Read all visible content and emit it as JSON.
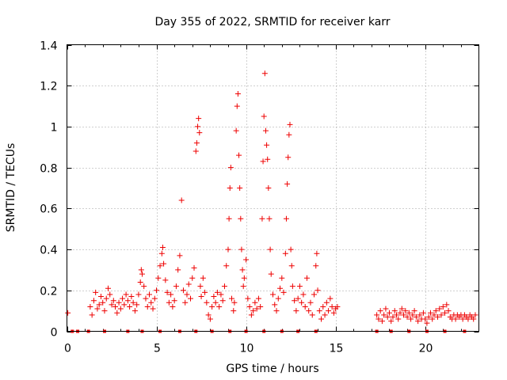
{
  "chart_data": {
    "type": "scatter",
    "title": "Day 355 of 2022, SRMTID for receiver karr",
    "xlabel": "GPS time / hours",
    "ylabel": "SRMTID / TECUs",
    "xlim": [
      0,
      23
    ],
    "ylim": [
      0,
      1.4
    ],
    "xticks": [
      "0",
      "5",
      "10",
      "15",
      "20"
    ],
    "xtick_values": [
      0,
      5,
      10,
      15,
      20
    ],
    "yticks": [
      "0",
      "0.2",
      "0.4",
      "0.6",
      "0.8",
      "1",
      "1.2",
      "1.4"
    ],
    "ytick_values": [
      0,
      0.2,
      0.4,
      0.6,
      0.8,
      1.0,
      1.2,
      1.4
    ],
    "grid": true,
    "color": "#ee0000",
    "marker": "+",
    "baseline_markers_x": [
      0.3,
      0.6,
      1.2,
      2.1,
      3.4,
      4.2,
      5.2,
      6.3,
      7.2,
      8.1,
      9.1,
      10.0,
      11.0,
      12.0,
      12.9,
      13.9,
      17.3,
      18.1,
      19.1,
      20.1,
      21.1,
      22.2
    ],
    "series": [
      {
        "name": "SRMTID",
        "points": [
          [
            0.05,
            0.09
          ],
          [
            1.3,
            0.12
          ],
          [
            1.4,
            0.08
          ],
          [
            1.5,
            0.15
          ],
          [
            1.6,
            0.19
          ],
          [
            1.7,
            0.11
          ],
          [
            1.8,
            0.13
          ],
          [
            1.9,
            0.17
          ],
          [
            2.0,
            0.14
          ],
          [
            2.1,
            0.1
          ],
          [
            2.2,
            0.16
          ],
          [
            2.3,
            0.21
          ],
          [
            2.4,
            0.18
          ],
          [
            2.5,
            0.13
          ],
          [
            2.6,
            0.15
          ],
          [
            2.7,
            0.12
          ],
          [
            2.8,
            0.09
          ],
          [
            2.9,
            0.14
          ],
          [
            3.0,
            0.11
          ],
          [
            3.1,
            0.16
          ],
          [
            3.2,
            0.13
          ],
          [
            3.3,
            0.18
          ],
          [
            3.4,
            0.15
          ],
          [
            3.5,
            0.12
          ],
          [
            3.6,
            0.17
          ],
          [
            3.7,
            0.14
          ],
          [
            3.8,
            0.1
          ],
          [
            3.9,
            0.13
          ],
          [
            4.0,
            0.18
          ],
          [
            4.1,
            0.24
          ],
          [
            4.15,
            0.3
          ],
          [
            4.2,
            0.28
          ],
          [
            4.3,
            0.22
          ],
          [
            4.4,
            0.16
          ],
          [
            4.5,
            0.12
          ],
          [
            4.6,
            0.18
          ],
          [
            4.7,
            0.14
          ],
          [
            4.8,
            0.11
          ],
          [
            4.9,
            0.16
          ],
          [
            5.0,
            0.2
          ],
          [
            5.1,
            0.26
          ],
          [
            5.2,
            0.32
          ],
          [
            5.3,
            0.38
          ],
          [
            5.35,
            0.41
          ],
          [
            5.4,
            0.33
          ],
          [
            5.5,
            0.25
          ],
          [
            5.6,
            0.19
          ],
          [
            5.7,
            0.14
          ],
          [
            5.8,
            0.18
          ],
          [
            5.9,
            0.12
          ],
          [
            6.0,
            0.15
          ],
          [
            6.1,
            0.22
          ],
          [
            6.2,
            0.3
          ],
          [
            6.3,
            0.37
          ],
          [
            6.4,
            0.64
          ],
          [
            6.5,
            0.2
          ],
          [
            6.6,
            0.14
          ],
          [
            6.7,
            0.18
          ],
          [
            6.8,
            0.23
          ],
          [
            6.9,
            0.16
          ],
          [
            7.0,
            0.26
          ],
          [
            7.1,
            0.31
          ],
          [
            7.2,
            0.88
          ],
          [
            7.25,
            0.92
          ],
          [
            7.3,
            1.0
          ],
          [
            7.35,
            1.04
          ],
          [
            7.4,
            0.97
          ],
          [
            7.45,
            0.22
          ],
          [
            7.5,
            0.17
          ],
          [
            7.6,
            0.26
          ],
          [
            7.7,
            0.19
          ],
          [
            7.8,
            0.14
          ],
          [
            7.9,
            0.08
          ],
          [
            8.0,
            0.06
          ],
          [
            8.1,
            0.12
          ],
          [
            8.2,
            0.17
          ],
          [
            8.3,
            0.14
          ],
          [
            8.4,
            0.19
          ],
          [
            8.5,
            0.12
          ],
          [
            8.6,
            0.18
          ],
          [
            8.7,
            0.15
          ],
          [
            8.8,
            0.22
          ],
          [
            8.9,
            0.32
          ],
          [
            9.0,
            0.4
          ],
          [
            9.05,
            0.55
          ],
          [
            9.1,
            0.7
          ],
          [
            9.15,
            0.8
          ],
          [
            9.2,
            0.16
          ],
          [
            9.3,
            0.1
          ],
          [
            9.35,
            0.14
          ],
          [
            9.45,
            0.98
          ],
          [
            9.5,
            1.1
          ],
          [
            9.55,
            1.16
          ],
          [
            9.6,
            0.86
          ],
          [
            9.65,
            0.7
          ],
          [
            9.7,
            0.55
          ],
          [
            9.75,
            0.4
          ],
          [
            9.8,
            0.3
          ],
          [
            9.85,
            0.22
          ],
          [
            9.9,
            0.26
          ],
          [
            10.0,
            0.35
          ],
          [
            10.1,
            0.16
          ],
          [
            10.2,
            0.12
          ],
          [
            10.3,
            0.08
          ],
          [
            10.4,
            0.1
          ],
          [
            10.5,
            0.14
          ],
          [
            10.6,
            0.11
          ],
          [
            10.7,
            0.16
          ],
          [
            10.8,
            0.12
          ],
          [
            10.9,
            0.55
          ],
          [
            10.95,
            0.83
          ],
          [
            11.0,
            1.05
          ],
          [
            11.05,
            1.26
          ],
          [
            11.1,
            0.98
          ],
          [
            11.15,
            0.91
          ],
          [
            11.2,
            0.84
          ],
          [
            11.25,
            0.7
          ],
          [
            11.3,
            0.55
          ],
          [
            11.35,
            0.4
          ],
          [
            11.4,
            0.28
          ],
          [
            11.5,
            0.18
          ],
          [
            11.6,
            0.13
          ],
          [
            11.7,
            0.1
          ],
          [
            11.8,
            0.16
          ],
          [
            11.9,
            0.21
          ],
          [
            12.0,
            0.26
          ],
          [
            12.1,
            0.19
          ],
          [
            12.2,
            0.38
          ],
          [
            12.25,
            0.55
          ],
          [
            12.3,
            0.72
          ],
          [
            12.35,
            0.85
          ],
          [
            12.4,
            0.96
          ],
          [
            12.45,
            1.01
          ],
          [
            12.5,
            0.4
          ],
          [
            12.55,
            0.32
          ],
          [
            12.6,
            0.22
          ],
          [
            12.7,
            0.15
          ],
          [
            12.8,
            0.1
          ],
          [
            12.9,
            0.16
          ],
          [
            13.0,
            0.22
          ],
          [
            13.1,
            0.14
          ],
          [
            13.2,
            0.18
          ],
          [
            13.3,
            0.12
          ],
          [
            13.4,
            0.26
          ],
          [
            13.5,
            0.1
          ],
          [
            13.6,
            0.14
          ],
          [
            13.7,
            0.08
          ],
          [
            13.8,
            0.18
          ],
          [
            13.9,
            0.32
          ],
          [
            13.95,
            0.38
          ],
          [
            14.0,
            0.2
          ],
          [
            14.1,
            0.1
          ],
          [
            14.2,
            0.06
          ],
          [
            14.3,
            0.12
          ],
          [
            14.4,
            0.08
          ],
          [
            14.5,
            0.14
          ],
          [
            14.6,
            0.1
          ],
          [
            14.7,
            0.16
          ],
          [
            14.8,
            0.12
          ],
          [
            14.9,
            0.09
          ],
          [
            15.0,
            0.11
          ],
          [
            15.1,
            0.12
          ],
          [
            17.3,
            0.08
          ],
          [
            17.4,
            0.06
          ],
          [
            17.5,
            0.1
          ],
          [
            17.6,
            0.05
          ],
          [
            17.7,
            0.08
          ],
          [
            17.8,
            0.11
          ],
          [
            17.9,
            0.07
          ],
          [
            18.0,
            0.09
          ],
          [
            18.1,
            0.05
          ],
          [
            18.2,
            0.07
          ],
          [
            18.3,
            0.1
          ],
          [
            18.4,
            0.08
          ],
          [
            18.5,
            0.06
          ],
          [
            18.6,
            0.09
          ],
          [
            18.7,
            0.11
          ],
          [
            18.8,
            0.08
          ],
          [
            18.9,
            0.1
          ],
          [
            19.0,
            0.07
          ],
          [
            19.1,
            0.09
          ],
          [
            19.2,
            0.06
          ],
          [
            19.3,
            0.08
          ],
          [
            19.4,
            0.1
          ],
          [
            19.5,
            0.07
          ],
          [
            19.6,
            0.05
          ],
          [
            19.7,
            0.08
          ],
          [
            19.8,
            0.06
          ],
          [
            19.9,
            0.09
          ],
          [
            20.0,
            0.06
          ],
          [
            20.1,
            0.04
          ],
          [
            20.2,
            0.07
          ],
          [
            20.3,
            0.09
          ],
          [
            20.4,
            0.06
          ],
          [
            20.5,
            0.08
          ],
          [
            20.6,
            0.1
          ],
          [
            20.7,
            0.07
          ],
          [
            20.8,
            0.11
          ],
          [
            20.9,
            0.08
          ],
          [
            21.0,
            0.12
          ],
          [
            21.1,
            0.09
          ],
          [
            21.2,
            0.13
          ],
          [
            21.3,
            0.1
          ],
          [
            21.4,
            0.07
          ],
          [
            21.5,
            0.06
          ],
          [
            21.6,
            0.08
          ],
          [
            21.7,
            0.06
          ],
          [
            21.8,
            0.08
          ],
          [
            21.9,
            0.07
          ],
          [
            22.0,
            0.08
          ],
          [
            22.1,
            0.06
          ],
          [
            22.2,
            0.08
          ],
          [
            22.3,
            0.07
          ],
          [
            22.4,
            0.06
          ],
          [
            22.5,
            0.08
          ],
          [
            22.6,
            0.07
          ],
          [
            22.7,
            0.06
          ],
          [
            22.8,
            0.08
          ]
        ]
      }
    ]
  }
}
